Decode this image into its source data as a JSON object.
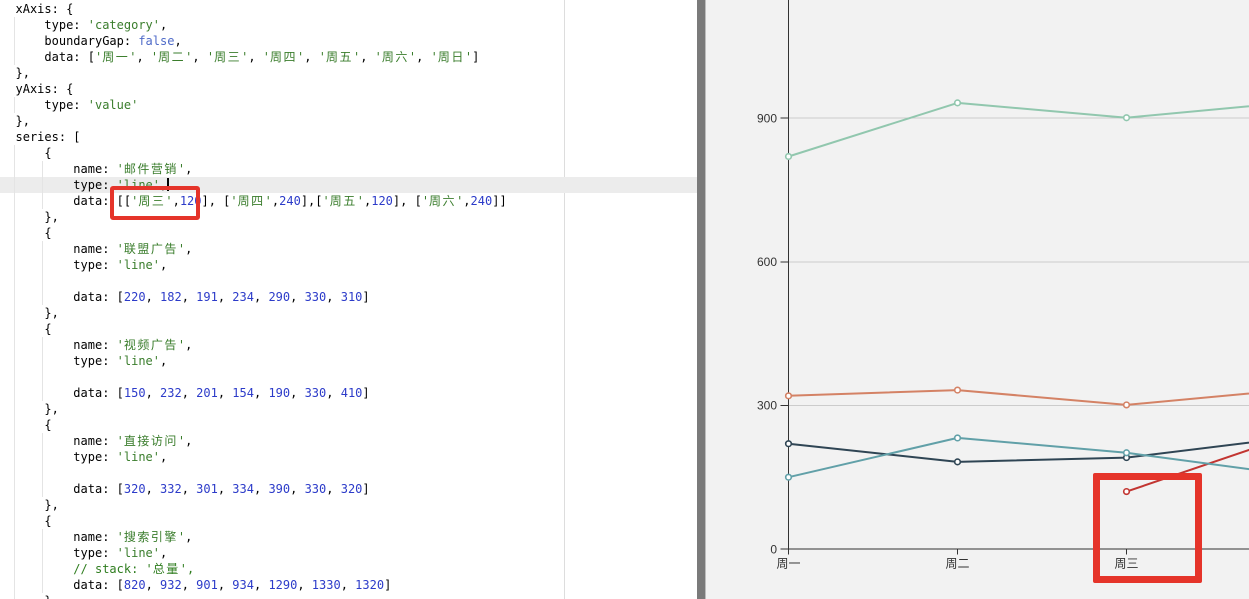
{
  "colors": {
    "editor_bg": "#ffffff",
    "code_plain": "#000000",
    "code_string": "#3a7d2c",
    "code_number": "#2c3bc9",
    "code_keyword": "#4e6ac8",
    "code_comment": "#2f7d1f",
    "current_line_bg": "#ececec",
    "indent_guide": "#e4e4e4",
    "ruler_line": "#dddddd",
    "divider": "#7a7a7a",
    "divider_edge": "#bdbdbd",
    "chart_bg": "#f2f2f2",
    "grid_line": "#cccccc",
    "axis_line": "#333333",
    "axis_label": "#333333",
    "annotation": "#e5342a"
  },
  "code": {
    "cursor_line": 11,
    "lines": [
      [
        [
          "p",
          "xAxis: {"
        ]
      ],
      [
        [
          "p",
          "    type: "
        ],
        [
          "s",
          "'category'"
        ],
        [
          "p",
          ","
        ]
      ],
      [
        [
          "p",
          "    boundaryGap: "
        ],
        [
          "k",
          "false"
        ],
        [
          "p",
          ","
        ]
      ],
      [
        [
          "p",
          "    data: ["
        ],
        [
          "s",
          "'周一'"
        ],
        [
          "p",
          ", "
        ],
        [
          "s",
          "'周二'"
        ],
        [
          "p",
          ", "
        ],
        [
          "s",
          "'周三'"
        ],
        [
          "p",
          ", "
        ],
        [
          "s",
          "'周四'"
        ],
        [
          "p",
          ", "
        ],
        [
          "s",
          "'周五'"
        ],
        [
          "p",
          ", "
        ],
        [
          "s",
          "'周六'"
        ],
        [
          "p",
          ", "
        ],
        [
          "s",
          "'周日'"
        ],
        [
          "p",
          "]"
        ]
      ],
      [
        [
          "p",
          "},"
        ]
      ],
      [
        [
          "p",
          "yAxis: {"
        ]
      ],
      [
        [
          "p",
          "    type: "
        ],
        [
          "s",
          "'value'"
        ]
      ],
      [
        [
          "p",
          "},"
        ]
      ],
      [
        [
          "p",
          "series: ["
        ]
      ],
      [
        [
          "p",
          "    {"
        ]
      ],
      [
        [
          "p",
          "        name: "
        ],
        [
          "s",
          "'邮件营销'"
        ],
        [
          "p",
          ","
        ]
      ],
      [
        [
          "p",
          "        type: "
        ],
        [
          "s",
          "'line'"
        ],
        [
          "p",
          ","
        ]
      ],
      [
        [
          "p",
          "        data: [["
        ],
        [
          "s",
          "'周三'"
        ],
        [
          "p",
          ","
        ],
        [
          "n",
          "120"
        ],
        [
          "p",
          "], ["
        ],
        [
          "s",
          "'周四'"
        ],
        [
          "p",
          ","
        ],
        [
          "n",
          "240"
        ],
        [
          "p",
          "],["
        ],
        [
          "s",
          "'周五'"
        ],
        [
          "p",
          ","
        ],
        [
          "n",
          "120"
        ],
        [
          "p",
          "], ["
        ],
        [
          "s",
          "'周六'"
        ],
        [
          "p",
          ","
        ],
        [
          "n",
          "240"
        ],
        [
          "p",
          "]]"
        ]
      ],
      [
        [
          "p",
          "    },"
        ]
      ],
      [
        [
          "p",
          "    {"
        ]
      ],
      [
        [
          "p",
          "        name: "
        ],
        [
          "s",
          "'联盟广告'"
        ],
        [
          "p",
          ","
        ]
      ],
      [
        [
          "p",
          "        type: "
        ],
        [
          "s",
          "'line'"
        ],
        [
          "p",
          ","
        ]
      ],
      [
        [
          "g",
          8
        ]
      ],
      [
        [
          "p",
          "        data: ["
        ],
        [
          "n",
          "220"
        ],
        [
          "p",
          ", "
        ],
        [
          "n",
          "182"
        ],
        [
          "p",
          ", "
        ],
        [
          "n",
          "191"
        ],
        [
          "p",
          ", "
        ],
        [
          "n",
          "234"
        ],
        [
          "p",
          ", "
        ],
        [
          "n",
          "290"
        ],
        [
          "p",
          ", "
        ],
        [
          "n",
          "330"
        ],
        [
          "p",
          ", "
        ],
        [
          "n",
          "310"
        ],
        [
          "p",
          "]"
        ]
      ],
      [
        [
          "p",
          "    },"
        ]
      ],
      [
        [
          "p",
          "    {"
        ]
      ],
      [
        [
          "p",
          "        name: "
        ],
        [
          "s",
          "'视频广告'"
        ],
        [
          "p",
          ","
        ]
      ],
      [
        [
          "p",
          "        type: "
        ],
        [
          "s",
          "'line'"
        ],
        [
          "p",
          ","
        ]
      ],
      [
        [
          "g",
          8
        ]
      ],
      [
        [
          "p",
          "        data: ["
        ],
        [
          "n",
          "150"
        ],
        [
          "p",
          ", "
        ],
        [
          "n",
          "232"
        ],
        [
          "p",
          ", "
        ],
        [
          "n",
          "201"
        ],
        [
          "p",
          ", "
        ],
        [
          "n",
          "154"
        ],
        [
          "p",
          ", "
        ],
        [
          "n",
          "190"
        ],
        [
          "p",
          ", "
        ],
        [
          "n",
          "330"
        ],
        [
          "p",
          ", "
        ],
        [
          "n",
          "410"
        ],
        [
          "p",
          "]"
        ]
      ],
      [
        [
          "p",
          "    },"
        ]
      ],
      [
        [
          "p",
          "    {"
        ]
      ],
      [
        [
          "p",
          "        name: "
        ],
        [
          "s",
          "'直接访问'"
        ],
        [
          "p",
          ","
        ]
      ],
      [
        [
          "p",
          "        type: "
        ],
        [
          "s",
          "'line'"
        ],
        [
          "p",
          ","
        ]
      ],
      [
        [
          "g",
          8
        ]
      ],
      [
        [
          "p",
          "        data: ["
        ],
        [
          "n",
          "320"
        ],
        [
          "p",
          ", "
        ],
        [
          "n",
          "332"
        ],
        [
          "p",
          ", "
        ],
        [
          "n",
          "301"
        ],
        [
          "p",
          ", "
        ],
        [
          "n",
          "334"
        ],
        [
          "p",
          ", "
        ],
        [
          "n",
          "390"
        ],
        [
          "p",
          ", "
        ],
        [
          "n",
          "330"
        ],
        [
          "p",
          ", "
        ],
        [
          "n",
          "320"
        ],
        [
          "p",
          "]"
        ]
      ],
      [
        [
          "p",
          "    },"
        ]
      ],
      [
        [
          "p",
          "    {"
        ]
      ],
      [
        [
          "p",
          "        name: "
        ],
        [
          "s",
          "'搜索引擎'"
        ],
        [
          "p",
          ","
        ]
      ],
      [
        [
          "p",
          "        type: "
        ],
        [
          "s",
          "'line'"
        ],
        [
          "p",
          ","
        ]
      ],
      [
        [
          "p",
          "        "
        ],
        [
          "c",
          "// stack: '总量',"
        ]
      ],
      [
        [
          "p",
          "        data: ["
        ],
        [
          "n",
          "820"
        ],
        [
          "p",
          ", "
        ],
        [
          "n",
          "932"
        ],
        [
          "p",
          ", "
        ],
        [
          "n",
          "901"
        ],
        [
          "p",
          ", "
        ],
        [
          "n",
          "934"
        ],
        [
          "p",
          ", "
        ],
        [
          "n",
          "1290"
        ],
        [
          "p",
          ", "
        ],
        [
          "n",
          "1330"
        ],
        [
          "p",
          ", "
        ],
        [
          "n",
          "1320"
        ],
        [
          "p",
          "]"
        ]
      ],
      [
        [
          "p",
          "    }"
        ]
      ]
    ]
  },
  "chart_data": {
    "type": "line",
    "categories": [
      "周一",
      "周二",
      "周三",
      "周四",
      "周五",
      "周六",
      "周日"
    ],
    "series": [
      {
        "name": "邮件营销",
        "color": "#c23531",
        "points": [
          [
            "周三",
            120
          ],
          [
            "周四",
            240
          ],
          [
            "周五",
            120
          ],
          [
            "周六",
            240
          ]
        ]
      },
      {
        "name": "联盟广告",
        "color": "#2f4554",
        "values": [
          220,
          182,
          191,
          234,
          290,
          330,
          310
        ]
      },
      {
        "name": "视频广告",
        "color": "#61a0a8",
        "values": [
          150,
          232,
          201,
          154,
          190,
          330,
          410
        ]
      },
      {
        "name": "直接访问",
        "color": "#d48265",
        "values": [
          320,
          332,
          301,
          334,
          390,
          330,
          320
        ]
      },
      {
        "name": "搜索引擎",
        "color": "#91c7ae",
        "values": [
          820,
          932,
          901,
          934,
          1290,
          1330,
          1320
        ]
      }
    ],
    "xAxis": {
      "type": "category",
      "boundaryGap": false,
      "visible_labels": [
        "周一",
        "周二",
        "周三"
      ]
    },
    "yAxis": {
      "type": "value",
      "visible_ticks": [
        0,
        300,
        600,
        900
      ]
    },
    "grid": true,
    "title": "",
    "xlabel": "",
    "ylabel": ""
  }
}
